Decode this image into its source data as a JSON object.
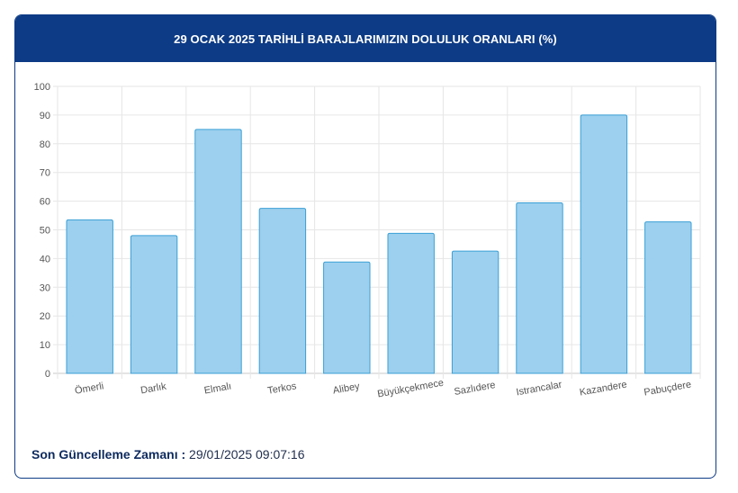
{
  "header": {
    "title": "29 OCAK 2025 TARİHLİ BARAJLARIMIZIN DOLULUK ORANLARI (%)"
  },
  "chart_data": {
    "type": "bar",
    "title": "29 OCAK 2025 TARİHLİ BARAJLARIMIZIN DOLULUK ORANLARI (%)",
    "categories": [
      "Ömerli",
      "Darlık",
      "Elmalı",
      "Terkos",
      "Alibey",
      "Büyükçekmece",
      "Sazlıdere",
      "Istrancalar",
      "Kazandere",
      "Pabuçdere"
    ],
    "values": [
      53.5,
      48,
      85,
      57.5,
      38.8,
      48.8,
      42.6,
      59.4,
      90,
      52.8
    ],
    "ylim": [
      0,
      100
    ],
    "yticks": [
      "0",
      "10",
      "20",
      "30",
      "40",
      "50",
      "60",
      "70",
      "80",
      "90",
      "100"
    ],
    "grid": true,
    "legend": "none",
    "bar_fill": "#9dd0ee",
    "bar_stroke": "#3a9fd6"
  },
  "footer": {
    "label": "Son Güncelleme Zamanı :",
    "value": "29/01/2025 09:07:16"
  }
}
